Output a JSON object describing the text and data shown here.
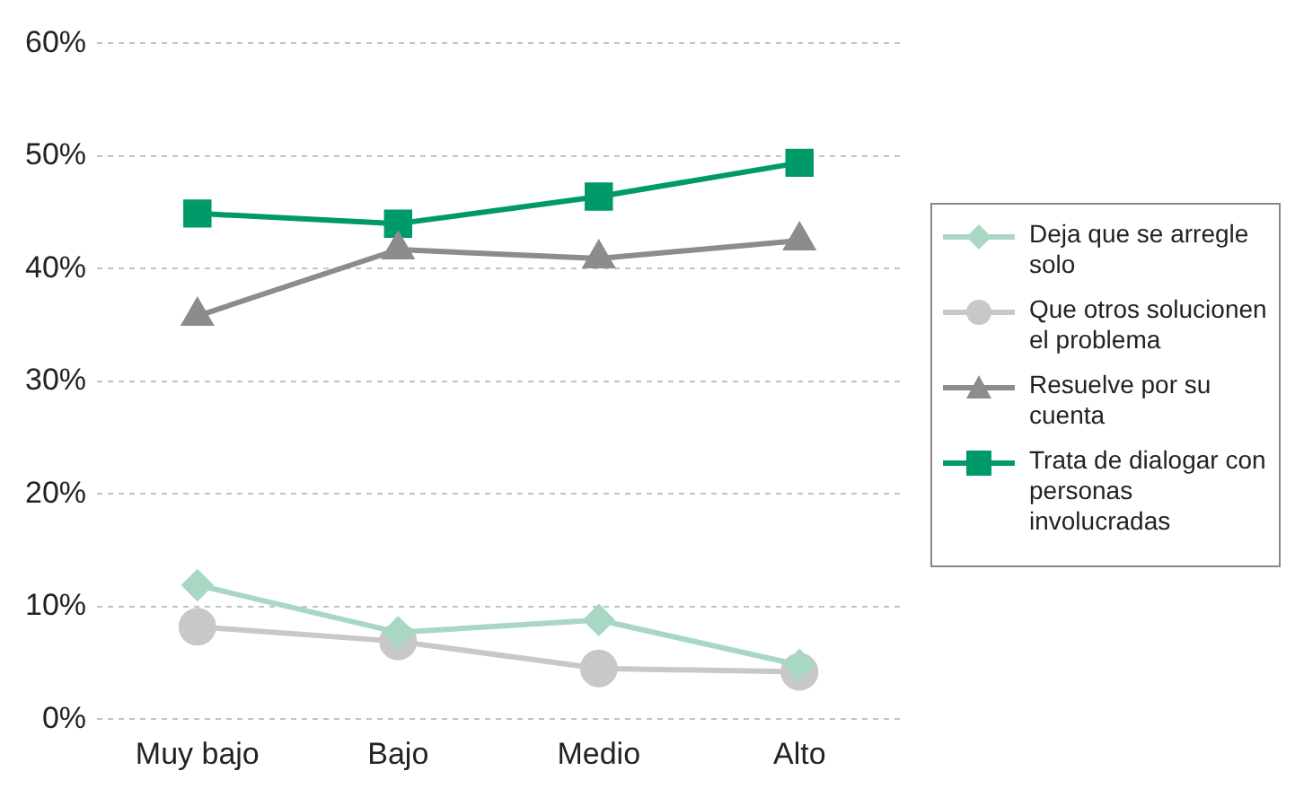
{
  "chart_data": {
    "type": "line",
    "categories": [
      "Muy bajo",
      "Bajo",
      "Medio",
      "Alto"
    ],
    "series": [
      {
        "name": "Deja que se arregle solo",
        "color": "#a8d8c4",
        "marker": "diamond",
        "values": [
          11.9,
          7.7,
          8.8,
          4.8
        ]
      },
      {
        "name": "Que otros solucionen el problema",
        "color": "#c8c8c8",
        "marker": "circle",
        "values": [
          8.2,
          6.9,
          4.5,
          4.2
        ]
      },
      {
        "name": "Resuelve por su cuenta",
        "color": "#8c8c8e",
        "marker": "triangle",
        "values": [
          35.8,
          41.7,
          40.9,
          42.5
        ]
      },
      {
        "name": "Trata de dialogar con personas involucradas",
        "color": "#009a6a",
        "marker": "square",
        "values": [
          44.9,
          44.0,
          46.4,
          49.4
        ]
      }
    ],
    "ylim": [
      0,
      60
    ],
    "yticks": [
      {
        "value": 0,
        "label": "0%"
      },
      {
        "value": 10,
        "label": "10%"
      },
      {
        "value": 20,
        "label": "20%"
      },
      {
        "value": 30,
        "label": "30%"
      },
      {
        "value": 40,
        "label": "40%"
      },
      {
        "value": 50,
        "label": "50%"
      },
      {
        "value": 60,
        "label": "60%"
      }
    ],
    "grid": "y",
    "legend": "right",
    "line_style": "solid"
  }
}
